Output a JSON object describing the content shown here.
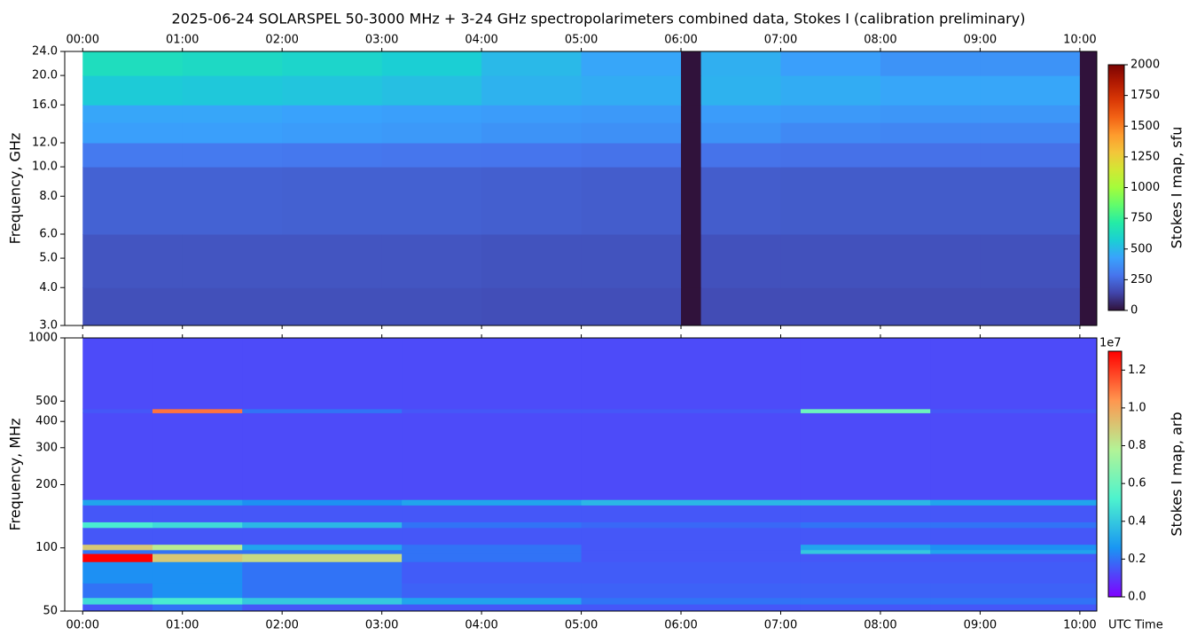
{
  "title": "2025-06-24  SOLARSPEL  50-3000 MHz  +  3-24 GHz  spectropolarimeters combined data,  Stokes I  (calibration preliminary)",
  "chart_data": [
    {
      "type": "heatmap",
      "ylabel": "Frequency, GHz",
      "ylog": true,
      "x_tick_side": "top",
      "xlim": [
        -0.18,
        10.17
      ],
      "xticks": [
        {
          "value": 0,
          "label": "00:00"
        },
        {
          "value": 1,
          "label": "01:00"
        },
        {
          "value": 2,
          "label": "02:00"
        },
        {
          "value": 3,
          "label": "03:00"
        },
        {
          "value": 4,
          "label": "04:00"
        },
        {
          "value": 5,
          "label": "05:00"
        },
        {
          "value": 6,
          "label": "06:00"
        },
        {
          "value": 7,
          "label": "07:00"
        },
        {
          "value": 8,
          "label": "08:00"
        },
        {
          "value": 9,
          "label": "09:00"
        },
        {
          "value": 10,
          "label": "10:00"
        }
      ],
      "ylim": [
        3,
        24
      ],
      "yticks": [
        {
          "value": 3,
          "label": "3.0"
        },
        {
          "value": 4,
          "label": "4.0"
        },
        {
          "value": 5,
          "label": "5.0"
        },
        {
          "value": 6,
          "label": "6.0"
        },
        {
          "value": 8,
          "label": "8.0"
        },
        {
          "value": 10,
          "label": "10.0"
        },
        {
          "value": 12,
          "label": "12.0"
        },
        {
          "value": 16,
          "label": "16.0"
        },
        {
          "value": 20,
          "label": "20.0"
        },
        {
          "value": 24,
          "label": "24.0"
        }
      ],
      "x_edges": [
        0,
        1,
        2,
        3,
        4,
        5,
        6,
        6.2,
        7,
        8,
        9,
        10,
        10.17
      ],
      "y_edges": [
        3,
        4,
        6,
        10,
        12,
        14,
        16,
        20,
        24
      ],
      "values": [
        [
          175,
          175,
          175,
          175,
          170,
          170,
          0,
          165,
          165,
          165,
          165,
          0
        ],
        [
          190,
          190,
          190,
          190,
          185,
          185,
          0,
          180,
          180,
          180,
          180,
          0
        ],
        [
          230,
          230,
          225,
          225,
          220,
          215,
          0,
          215,
          210,
          210,
          210,
          0
        ],
        [
          300,
          300,
          295,
          290,
          285,
          280,
          0,
          280,
          275,
          275,
          275,
          0
        ],
        [
          420,
          420,
          410,
          400,
          380,
          370,
          0,
          380,
          350,
          340,
          340,
          0
        ],
        [
          440,
          440,
          430,
          420,
          410,
          400,
          0,
          410,
          400,
          390,
          390,
          0
        ],
        [
          560,
          550,
          540,
          520,
          480,
          460,
          0,
          480,
          460,
          440,
          440,
          0
        ],
        [
          640,
          620,
          600,
          570,
          500,
          440,
          0,
          470,
          420,
          380,
          380,
          0
        ]
      ],
      "colormap": [
        "#30123b",
        "#4145ab",
        "#4675ed",
        "#39a2fc",
        "#1bcfd4",
        "#24eca6",
        "#61fc6c",
        "#a4fc3b",
        "#d1e834",
        "#f3c63a",
        "#fe9b2d",
        "#f36315",
        "#d93806",
        "#b11901",
        "#7a0403"
      ],
      "colorbar": {
        "label": "Stokes I map, sfu",
        "lim": [
          0,
          2000
        ],
        "ticks": [
          0,
          250,
          500,
          750,
          1000,
          1250,
          1500,
          1750,
          2000
        ]
      }
    },
    {
      "type": "heatmap",
      "ylabel": "Frequency, MHz",
      "xlabel": "UTC Time",
      "ylog": true,
      "x_tick_side": "bottom",
      "xlim": [
        -0.18,
        10.17
      ],
      "xticks": [
        {
          "value": 0,
          "label": "00:00"
        },
        {
          "value": 1,
          "label": "01:00"
        },
        {
          "value": 2,
          "label": "02:00"
        },
        {
          "value": 3,
          "label": "03:00"
        },
        {
          "value": 4,
          "label": "04:00"
        },
        {
          "value": 5,
          "label": "05:00"
        },
        {
          "value": 6,
          "label": "06:00"
        },
        {
          "value": 7,
          "label": "07:00"
        },
        {
          "value": 8,
          "label": "08:00"
        },
        {
          "value": 9,
          "label": "09:00"
        },
        {
          "value": 10,
          "label": "10:00"
        }
      ],
      "ylim": [
        50,
        1000
      ],
      "yticks": [
        50,
        100,
        200,
        300,
        400,
        500,
        1000
      ],
      "x_edges": [
        0,
        0.7,
        1.6,
        3.2,
        5,
        7.2,
        8.5,
        10.17
      ],
      "y_edges": [
        50,
        54,
        58,
        68,
        86,
        94,
        98,
        104,
        125,
        133,
        160,
        170,
        440,
        460,
        1000
      ],
      "values": [
        [
          0.15,
          0.2,
          0.15,
          0.15,
          0.15,
          0.15,
          0.15
        ],
        [
          0.45,
          0.5,
          0.4,
          0.3,
          0.2,
          0.2,
          0.2
        ],
        [
          0.2,
          0.25,
          0.2,
          0.17,
          0.17,
          0.17,
          0.17
        ],
        [
          0.25,
          0.25,
          0.2,
          0.16,
          0.16,
          0.16,
          0.16
        ],
        [
          1.3,
          0.9,
          0.85,
          0.2,
          0.15,
          0.15,
          0.15
        ],
        [
          0.2,
          0.2,
          0.2,
          0.2,
          0.15,
          0.4,
          0.3
        ],
        [
          0.9,
          0.8,
          0.3,
          0.2,
          0.15,
          0.3,
          0.25
        ],
        [
          0.15,
          0.15,
          0.15,
          0.15,
          0.15,
          0.15,
          0.15
        ],
        [
          0.5,
          0.45,
          0.35,
          0.2,
          0.18,
          0.2,
          0.2
        ],
        [
          0.15,
          0.15,
          0.15,
          0.15,
          0.15,
          0.15,
          0.15
        ],
        [
          0.3,
          0.3,
          0.25,
          0.3,
          0.35,
          0.35,
          0.3
        ],
        [
          0.13,
          0.13,
          0.13,
          0.13,
          0.13,
          0.13,
          0.13
        ],
        [
          0.15,
          1.1,
          0.2,
          0.15,
          0.15,
          0.6,
          0.15
        ],
        [
          0.13,
          0.13,
          0.13,
          0.13,
          0.13,
          0.13,
          0.13
        ]
      ],
      "colormap": [
        "#8000ff",
        "#1996f3",
        "#4df3ce",
        "#b3f396",
        "#ff964f",
        "#ff0000"
      ],
      "colorbar": {
        "label": "Stokes I map, arb",
        "offset_label": "1e7",
        "lim": [
          0,
          1.3
        ],
        "ticks": [
          {
            "value": 0,
            "label": "0.0"
          },
          0.2,
          0.4,
          0.6,
          0.8,
          {
            "value": 1,
            "label": "1.0"
          },
          1.2
        ]
      }
    }
  ]
}
